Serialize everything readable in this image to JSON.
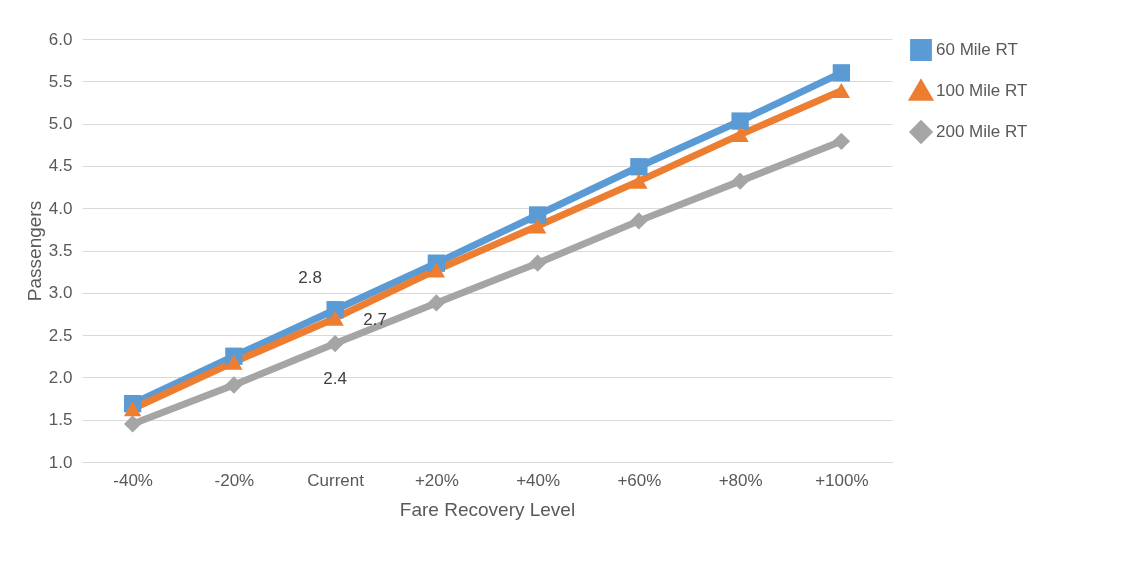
{
  "chart_data": {
    "type": "line",
    "xlabel": "Fare Recovery Level",
    "ylabel": "Passengers",
    "categories": [
      "-40%",
      "-20%",
      "Current",
      "+20%",
      "+40%",
      "+60%",
      "+80%",
      "+100%"
    ],
    "ylim": [
      1.0,
      6.0
    ],
    "yticks": [
      {
        "value": 1,
        "label": "1.0"
      },
      {
        "value": 1.5,
        "label": "1.5"
      },
      {
        "value": 2,
        "label": "2.0"
      },
      {
        "value": 2.5,
        "label": "2.5"
      },
      {
        "value": 3,
        "label": "3.0"
      },
      {
        "value": 3.5,
        "label": "3.5"
      },
      {
        "value": 4,
        "label": "4.0"
      },
      {
        "value": 4.5,
        "label": "4.5"
      },
      {
        "value": 5,
        "label": "5.0"
      },
      {
        "value": 5.5,
        "label": "5.5"
      },
      {
        "value": 6,
        "label": "6.0"
      }
    ],
    "grid": "y",
    "legend": "right",
    "line_style": "solid",
    "series": [
      {
        "name": "60 Mile RT",
        "color": "#5b9bd5",
        "marker": "square",
        "values": [
          1.69,
          2.25,
          2.8,
          3.35,
          3.92,
          4.49,
          5.03,
          5.6
        ],
        "value_labels": [
          null,
          null,
          "2.8",
          null,
          null,
          null,
          null,
          null
        ]
      },
      {
        "name": "100 Mile RT",
        "color": "#ed7d31",
        "marker": "triangle",
        "values": [
          1.63,
          2.18,
          2.7,
          3.27,
          3.79,
          4.32,
          4.87,
          5.39
        ],
        "value_labels": [
          null,
          null,
          "2.7",
          null,
          null,
          null,
          null,
          null
        ]
      },
      {
        "name": "200 Mile RT",
        "color": "#a5a5a5",
        "marker": "diamond",
        "values": [
          1.45,
          1.91,
          2.4,
          2.88,
          3.35,
          3.85,
          4.32,
          4.79
        ],
        "value_labels": [
          null,
          null,
          "2.4",
          null,
          null,
          null,
          null,
          null
        ]
      }
    ]
  }
}
